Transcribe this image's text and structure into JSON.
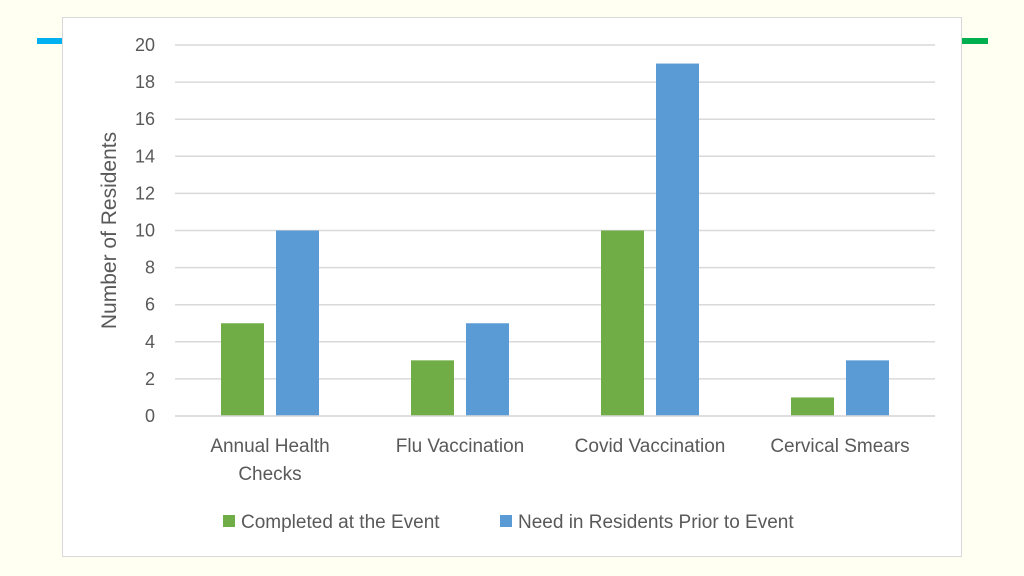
{
  "decor": {
    "left_accent_color": "#00b0f0",
    "right_accent_color": "#00b050"
  },
  "chart_data": {
    "type": "bar",
    "title": "",
    "xlabel": "",
    "ylabel": "Number of Residents",
    "ylim": [
      0,
      20
    ],
    "yticks": [
      0,
      2,
      4,
      6,
      8,
      10,
      12,
      14,
      16,
      18,
      20
    ],
    "grid": true,
    "legend_position": "bottom",
    "categories": [
      [
        "Annual Health",
        "Checks"
      ],
      [
        "Flu Vaccination"
      ],
      [
        "Covid Vaccination"
      ],
      [
        "Cervical Smears"
      ]
    ],
    "series": [
      {
        "name": "Completed at the Event",
        "color": "#70ad47",
        "values": [
          5,
          3,
          10,
          1
        ]
      },
      {
        "name": "Need in Residents Prior to Event",
        "color": "#5b9bd5",
        "values": [
          10,
          5,
          19,
          3
        ]
      }
    ]
  }
}
